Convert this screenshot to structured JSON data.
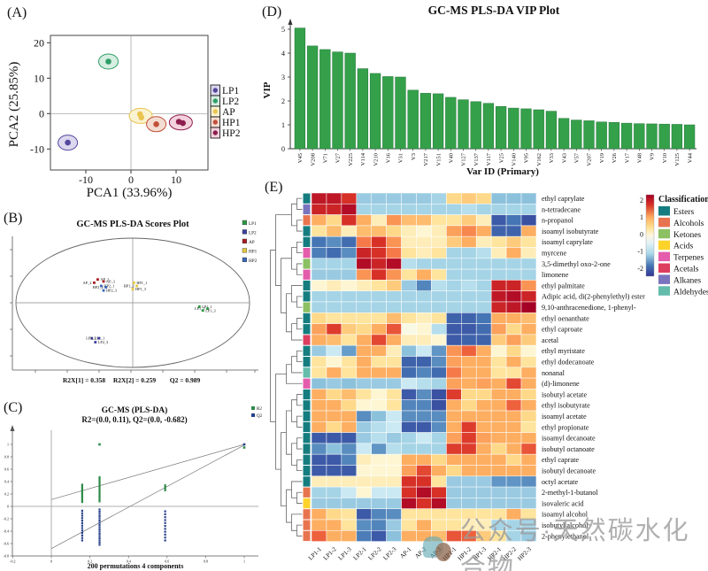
{
  "watermark": {
    "text": "公众号·天然碳水化合物"
  },
  "chart_data": [
    {
      "id": "A",
      "panel_label": "(A)",
      "type": "scatter",
      "xlabel": "PCA1 (33.96%)",
      "ylabel": "PCA2 (25.85%)",
      "x_ticks": [
        -10,
        0,
        10
      ],
      "y_ticks": [
        -10,
        0,
        10,
        20
      ],
      "xlim": [
        -17.8,
        17.0
      ],
      "ylim": [
        -15.9,
        22.1
      ],
      "groups": [
        {
          "name": "LP1",
          "color": "#54489e",
          "halo_fill": "#dcd7ee",
          "points": [
            [
              -14,
              -8.2
            ]
          ]
        },
        {
          "name": "LP2",
          "color": "#2e9e67",
          "halo_fill": "#d6eee1",
          "points": [
            [
              -5,
              14.7
            ]
          ]
        },
        {
          "name": "AP",
          "color": "#e9c44f",
          "halo_fill": "#faf3d2",
          "points": [
            [
              2,
              -0.2
            ],
            [
              2.3,
              -1.1
            ]
          ]
        },
        {
          "name": "HP1",
          "color": "#c2503a",
          "halo_fill": "#f3ddd2",
          "points": [
            [
              5.6,
              -3
            ]
          ]
        },
        {
          "name": "HP2",
          "color": "#8e1d4e",
          "halo_fill": "#f3d2dd",
          "points": [
            [
              10.6,
              -2.3
            ],
            [
              11.5,
              -2.7
            ]
          ]
        }
      ]
    },
    {
      "id": "B",
      "panel_label": "(B)",
      "type": "scatter",
      "title": "GC-MS PLS-DA Scores Plot",
      "stats": [
        "R2X[1] = 0.358",
        "R2X[2] = 0.259",
        "Q2 = 0.989"
      ],
      "groups": [
        {
          "name": "LP1",
          "color": "#2a9a44",
          "points": [
            {
              "x": 0.57,
              "y": -0.06,
              "label": "LP1_1"
            },
            {
              "x": 0.64,
              "y": -0.09,
              "label": "LP1_2"
            },
            {
              "x": 0.6,
              "y": -0.12,
              "label": "LP1_3"
            }
          ]
        },
        {
          "name": "LP2",
          "color": "#3c3f9e",
          "points": [
            {
              "x": -0.35,
              "y": -0.55,
              "label": "LP2_1"
            },
            {
              "x": -0.29,
              "y": -0.55,
              "label": "LP2_2"
            },
            {
              "x": -0.32,
              "y": -0.61,
              "label": "LP2_3"
            }
          ]
        },
        {
          "name": "AP",
          "color": "#a81c22",
          "points": [
            {
              "x": -0.3,
              "y": 0.36,
              "label": "AP_1"
            },
            {
              "x": -0.33,
              "y": 0.31,
              "label": "AP_2"
            },
            {
              "x": -0.25,
              "y": 0.33,
              "label": "AP_3"
            }
          ]
        },
        {
          "name": "HP1",
          "color": "#e3c73b",
          "points": [
            {
              "x": 0.01,
              "y": 0.31,
              "label": "HP1_1"
            },
            {
              "x": 0.035,
              "y": 0.26,
              "label": "HP1_2"
            },
            {
              "x": 0.0,
              "y": 0.21,
              "label": "HP1_3"
            }
          ]
        },
        {
          "name": "HP2",
          "color": "#3a66b8",
          "points": [
            {
              "x": -0.27,
              "y": 0.26,
              "label": "HP2_1"
            },
            {
              "x": -0.23,
              "y": 0.24,
              "label": "HP2_2"
            },
            {
              "x": -0.25,
              "y": 0.19,
              "label": "HP2_3"
            }
          ]
        }
      ]
    },
    {
      "id": "C",
      "panel_label": "(C)",
      "type": "scatter",
      "title": "GC-MS (PLS-DA)",
      "subtitle": "R2=(0.0, 0.11), Q2=(0.0, -0.682)",
      "xlabel": "200 permutations 4 components",
      "legend": [
        {
          "name": "R2",
          "color": "#2e8b4a"
        },
        {
          "name": "Q2",
          "color": "#27408b"
        }
      ],
      "x_ticks": [
        -0.2,
        0,
        0.2,
        0.4,
        0.6,
        0.8,
        1
      ],
      "y_ticks": [
        1,
        0.8,
        0.6,
        0.4,
        0.2,
        0,
        -0.2,
        -0.4,
        -0.6,
        -0.8
      ],
      "r2_line": [
        [
          0,
          0.11
        ],
        [
          1,
          1.0
        ]
      ],
      "q2_line": [
        [
          0,
          -0.682
        ],
        [
          1,
          0.989
        ]
      ],
      "r2_clusters": [
        {
          "x": 0.16,
          "ymin": 0.07,
          "ymax": 0.35,
          "n": 12
        },
        {
          "x": 0.25,
          "ymin": 0.08,
          "ymax": 0.47,
          "n": 16
        },
        {
          "x": 0.59,
          "ymin": 0.26,
          "ymax": 0.34,
          "n": 4
        }
      ],
      "q2_clusters": [
        {
          "x": 0.16,
          "ymin": -0.55,
          "ymax": -0.07,
          "n": 13
        },
        {
          "x": 0.25,
          "ymin": -0.62,
          "ymax": -0.05,
          "n": 17
        },
        {
          "x": 0.59,
          "ymin": -0.55,
          "ymax": -0.08,
          "n": 11
        }
      ],
      "r2_points": [
        [
          0.25,
          1.0
        ],
        [
          1.0,
          0.95
        ]
      ],
      "q2_points": [
        [
          1.0,
          1.0
        ]
      ]
    },
    {
      "id": "D",
      "panel_label": "(D)",
      "type": "bar",
      "title": "GC-MS PLS-DA VIP Plot",
      "xlabel": "Var ID (Primary)",
      "ylabel": "VIP",
      "bar_color": "#35a04a",
      "bar_edge": "#23763a",
      "y_ticks": [
        0,
        1,
        2,
        3,
        4,
        5
      ],
      "ylim": [
        0,
        5.3
      ],
      "categories": [
        "V45",
        "V208",
        "V71",
        "V27",
        "V225",
        "V114",
        "V210",
        "V16",
        "V31",
        "V3",
        "V217",
        "V151",
        "V40",
        "V127",
        "V137",
        "V117",
        "V25",
        "V140",
        "V95",
        "V162",
        "V33",
        "V43",
        "V57",
        "V207",
        "V19",
        "V26",
        "V17",
        "V48",
        "V9",
        "V10",
        "V125",
        "V44"
      ],
      "values": [
        5.05,
        4.3,
        4.15,
        4.05,
        4.0,
        3.35,
        3.15,
        3.02,
        3.0,
        2.45,
        2.32,
        2.3,
        2.15,
        2.05,
        1.97,
        1.9,
        1.77,
        1.7,
        1.67,
        1.63,
        1.57,
        1.27,
        1.2,
        1.17,
        1.12,
        1.1,
        1.07,
        1.05,
        1.04,
        1.03,
        1.02,
        1.0
      ]
    },
    {
      "id": "E",
      "panel_label": "(E)",
      "type": "heatmap",
      "columns": [
        "LP1-1",
        "LP1-2",
        "LP1-3",
        "LP2-1",
        "LP2-2",
        "LP2-3",
        "AP-1",
        "AP-2",
        "AP-3",
        "HP1-1",
        "HP1-2",
        "HP1-3",
        "HP2-1",
        "HP2-2",
        "HP2-3"
      ],
      "rows": [
        "ethyl caprylate",
        "n-tetradecane",
        "n-propanol",
        "isoamyl isobutyrate",
        "isoamyl caprylate",
        "myrcene",
        "3,5-dimethyl oxo-2-one",
        "limonene",
        "ethyl palmitate",
        "Adipic acid, di(2-phenylethyl) ester",
        "9,10-anthracenedione, 1-phenyl-",
        "ethyl oenanthate",
        "ethyl caproate",
        "acetal",
        "ethyl myristate",
        "ethyl dodecanoate",
        "nonanal",
        "(d)-limonene",
        "isobutyl acetate",
        "ethyl isobutyrate",
        "isoamyl acetate",
        "ethyl propionate",
        "isoamyl decanoate",
        "isobutyl octanoate",
        "ethyl caprate",
        "isobutyl decanoate",
        "octyl acetate",
        "2-methyl-1-butanol",
        "isovaleric acid",
        "isoamyl alcohol",
        "isobutyl alcohol",
        "2-phenylethanol"
      ],
      "row_classes": [
        "Esters",
        "Alkanes",
        "Alcohols",
        "Esters",
        "Esters",
        "Terpenes",
        "Ketones",
        "Terpenes",
        "Esters",
        "Esters",
        "Ketones",
        "Esters",
        "Esters",
        "Acetals",
        "Esters",
        "Esters",
        "Aldehydes",
        "Terpenes",
        "Esters",
        "Esters",
        "Esters",
        "Esters",
        "Esters",
        "Esters",
        "Esters",
        "Esters",
        "Esters",
        "Alcohols",
        "Acids",
        "Alcohols",
        "Alcohols",
        "Alcohols"
      ],
      "values": [
        [
          2.0,
          2.0,
          1.8,
          -0.5,
          -0.5,
          -0.5,
          -0.5,
          -0.5,
          -0.4,
          0.5,
          0.6,
          0.5,
          -0.6,
          -0.6,
          -0.6
        ],
        [
          1.9,
          1.9,
          2.1,
          -0.4,
          -0.4,
          -0.4,
          -0.4,
          -0.4,
          -0.4,
          -0.4,
          -0.3,
          -0.4,
          -0.4,
          -0.4,
          -0.4
        ],
        [
          0.8,
          0.5,
          1.8,
          0.8,
          0.3,
          1.0,
          0.7,
          0.7,
          0.4,
          0.4,
          0.6,
          0.3,
          -1.8,
          -1.5,
          -1.9
        ],
        [
          0.4,
          0.7,
          0.3,
          0.7,
          0.7,
          0.5,
          0.3,
          0.2,
          0.3,
          0.9,
          1.1,
          0.8,
          -1.7,
          -1.7,
          0.8
        ],
        [
          -1.5,
          -1.2,
          -1.6,
          1.2,
          1.8,
          1.0,
          0.3,
          0.3,
          0.3,
          0.6,
          0.8,
          0.3,
          0.4,
          0.6,
          0.4
        ],
        [
          -1.4,
          -1.6,
          -1.2,
          1.9,
          1.8,
          1.2,
          0.4,
          0.3,
          0.4,
          -0.4,
          -0.4,
          -0.3,
          0.3,
          0.8,
          0.3
        ],
        [
          -0.4,
          -0.4,
          -0.4,
          2.1,
          1.9,
          2.1,
          -0.3,
          -0.4,
          -0.4,
          -0.4,
          -0.4,
          -0.4,
          -0.4,
          -0.4,
          -0.4
        ],
        [
          -0.5,
          -0.5,
          -0.5,
          1.0,
          1.8,
          1.0,
          0.4,
          0.8,
          0.4,
          -0.4,
          -0.4,
          -0.4,
          -0.4,
          -0.4,
          -0.4
        ],
        [
          0.2,
          0.3,
          0.2,
          0.3,
          0.4,
          0.6,
          -0.5,
          -1.3,
          -0.3,
          -0.4,
          -0.3,
          -0.4,
          1.9,
          1.9,
          1.0
        ],
        [
          -0.4,
          -0.4,
          -0.4,
          -0.4,
          -0.4,
          -0.4,
          -0.4,
          -0.4,
          -0.4,
          -0.4,
          -0.4,
          -0.4,
          2.0,
          2.1,
          1.9
        ],
        [
          -0.4,
          -0.4,
          -0.4,
          -0.4,
          -0.4,
          -0.4,
          -0.4,
          -0.4,
          -0.4,
          -0.4,
          -0.4,
          -0.4,
          1.9,
          2.0,
          2.2
        ],
        [
          0.5,
          0.4,
          0.4,
          0.4,
          0.4,
          0.7,
          0.4,
          0.3,
          0.4,
          -1.7,
          -1.7,
          -1.5,
          0.8,
          0.8,
          0.7
        ],
        [
          0.9,
          1.7,
          0.6,
          0.5,
          0.8,
          1.5,
          0.1,
          0.2,
          -0.3,
          -1.8,
          -1.8,
          -1.6,
          0.9,
          0.5,
          0.8
        ],
        [
          0.8,
          0.7,
          0.4,
          0.8,
          1.6,
          0.8,
          0.3,
          0.3,
          0.2,
          -1.8,
          -1.7,
          -1.7,
          0.6,
          0.9,
          0.6
        ],
        [
          -0.5,
          -0.2,
          -1.0,
          0.8,
          0.8,
          0.3,
          -0.6,
          -0.2,
          -1.1,
          1.0,
          1.4,
          0.8,
          0.2,
          0.5,
          0.2
        ],
        [
          0.4,
          0.2,
          0.4,
          0.8,
          0.4,
          0.4,
          -1.7,
          -1.7,
          -1.2,
          0.9,
          0.8,
          0.8,
          0.4,
          0.8,
          0.4
        ],
        [
          0.4,
          0.8,
          0.4,
          0.8,
          0.8,
          0.8,
          -1.6,
          -1.3,
          -1.6,
          1.2,
          0.8,
          0.8,
          0.4,
          0.4,
          0.8
        ],
        [
          -0.6,
          -0.5,
          -0.6,
          -0.5,
          -0.5,
          -0.5,
          -0.2,
          -0.3,
          -0.4,
          0.9,
          0.8,
          0.9,
          0.8,
          1.6,
          0.8
        ],
        [
          0.8,
          0.5,
          0.7,
          0.4,
          0.2,
          0.4,
          -1.8,
          -1.2,
          -1.9,
          1.7,
          0.5,
          0.5,
          0.8,
          0.8,
          0.5
        ],
        [
          0.8,
          0.8,
          0.5,
          0.2,
          0.2,
          0.4,
          -1.3,
          -1.3,
          -1.9,
          0.8,
          0.5,
          0.8,
          0.8,
          1.4,
          0.8
        ],
        [
          0.8,
          0.8,
          0.8,
          -1.2,
          -0.6,
          -0.2,
          -1.2,
          -1.2,
          -1.2,
          0.8,
          0.8,
          0.8,
          0.8,
          0.8,
          0.5
        ],
        [
          0.8,
          0.5,
          0.8,
          -0.5,
          -0.3,
          -0.2,
          -1.8,
          -1.8,
          -1.2,
          0.8,
          1.7,
          0.8,
          0.8,
          0.8,
          0.4
        ],
        [
          -1.8,
          -1.8,
          -1.8,
          -0.5,
          -0.3,
          -0.5,
          -0.4,
          -0.2,
          -0.4,
          0.9,
          1.7,
          0.9,
          0.8,
          0.8,
          0.8
        ],
        [
          -1.2,
          -0.6,
          -1.2,
          -0.2,
          -1.1,
          -0.3,
          -0.4,
          -0.4,
          -0.4,
          1.7,
          1.7,
          0.8,
          0.5,
          0.8,
          1.5
        ],
        [
          -1.8,
          -1.8,
          -1.3,
          0.3,
          0.2,
          0.2,
          0.8,
          0.8,
          0.5,
          0.8,
          0.8,
          0.8,
          0.8,
          0.5,
          0.8
        ],
        [
          -1.8,
          -1.8,
          -1.8,
          0.2,
          0.2,
          0.2,
          0.9,
          1.6,
          0.8,
          0.5,
          0.8,
          0.8,
          0.8,
          0.8,
          0.8
        ],
        [
          0.3,
          0.3,
          0.3,
          0.3,
          0.3,
          0.3,
          1.8,
          1.8,
          0.4,
          -0.5,
          -0.5,
          -0.5,
          -1.1,
          -1.1,
          -1.2
        ],
        [
          -0.4,
          -0.4,
          -0.2,
          0.2,
          -0.2,
          -0.2,
          1.8,
          2.1,
          1.8,
          -0.5,
          -0.5,
          -0.5,
          -0.5,
          -0.5,
          -0.5
        ],
        [
          -0.5,
          -0.5,
          -0.5,
          -0.5,
          -0.5,
          -0.5,
          2.1,
          1.8,
          2.1,
          -0.5,
          -0.5,
          -0.5,
          -0.5,
          -0.5,
          -0.5
        ],
        [
          0.8,
          0.5,
          0.4,
          -1.8,
          -1.3,
          -1.2,
          0.4,
          0.4,
          0.4,
          0.4,
          0.4,
          0.4,
          0.4,
          0.8,
          0.4
        ],
        [
          0.8,
          0.8,
          0.4,
          -1.2,
          -1.3,
          -0.5,
          0.4,
          0.8,
          0.4,
          0.4,
          0.3,
          0.3,
          -0.4,
          -0.4,
          -0.4
        ],
        [
          1.4,
          0.8,
          0.8,
          -1.4,
          -1.8,
          -0.6,
          0.8,
          0.8,
          0.7,
          1.5,
          1.4,
          0.6,
          0.4,
          -0.4,
          -0.5
        ]
      ],
      "colorbar_ticks": [
        "2",
        "1",
        "0",
        "-1",
        "-2"
      ],
      "classification": {
        "title": "Classification",
        "classes": [
          {
            "name": "Esters",
            "color": "#157d7f"
          },
          {
            "name": "Alcohols",
            "color": "#e8744f"
          },
          {
            "name": "Ketones",
            "color": "#8cc063"
          },
          {
            "name": "Acids",
            "color": "#fdd32a"
          },
          {
            "name": "Terpenes",
            "color": "#e45cab"
          },
          {
            "name": "Acetals",
            "color": "#dd3d5e"
          },
          {
            "name": "Alkanes",
            "color": "#7a74be"
          },
          {
            "name": "Aldehydes",
            "color": "#64bcab"
          }
        ]
      }
    }
  ]
}
